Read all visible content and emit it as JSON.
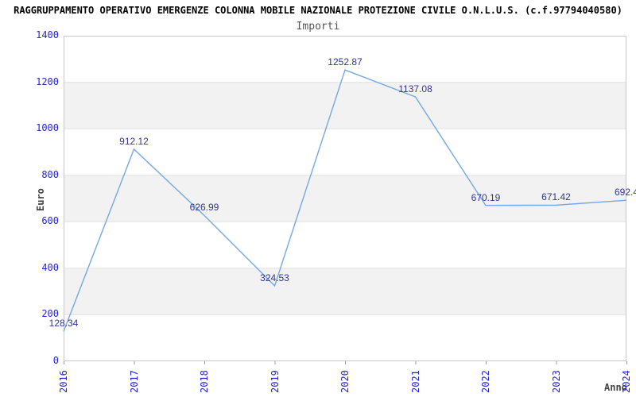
{
  "title": "RAGGRUPPAMENTO OPERATIVO EMERGENZE COLONNA MOBILE NAZIONALE PROTEZIONE CIVILE O.N.L.U.S. (c.f.97794040580)",
  "subtitle": "Importi",
  "chart_data": {
    "type": "line",
    "x": [
      "2016",
      "2017",
      "2018",
      "2019",
      "2020",
      "2021",
      "2022",
      "2023",
      "2024"
    ],
    "series": [
      {
        "name": "Importi",
        "values": [
          128.34,
          912.12,
          626.99,
          324.53,
          1252.87,
          1137.08,
          670.19,
          671.42,
          692.4
        ]
      }
    ],
    "point_labels": [
      "128.34",
      "912.12",
      "626.99",
      "324.53",
      "1252.87",
      "1137.08",
      "670.19",
      "671.42",
      "692.4"
    ],
    "xlabel": "Anno",
    "ylabel": "Euro",
    "ylim": [
      0,
      1400
    ],
    "ytick_step": 200,
    "ytick_labels": [
      "0",
      "200",
      "400",
      "600",
      "800",
      "1000",
      "1200",
      "1400"
    ],
    "grid": "horizontal-bands-alternating",
    "legend_position": "none"
  },
  "colors": {
    "background": "#ffffff",
    "title": "#000000",
    "subtitle": "#555555",
    "tick_label": "#2222dd",
    "point_label": "#333399",
    "axis_label": "#444444",
    "line": "#74a7e4",
    "band": "#f2f2f2",
    "gridline": "#e2e2e2",
    "plot_border": "#c8c8c8",
    "axis_tick": "#999999"
  }
}
